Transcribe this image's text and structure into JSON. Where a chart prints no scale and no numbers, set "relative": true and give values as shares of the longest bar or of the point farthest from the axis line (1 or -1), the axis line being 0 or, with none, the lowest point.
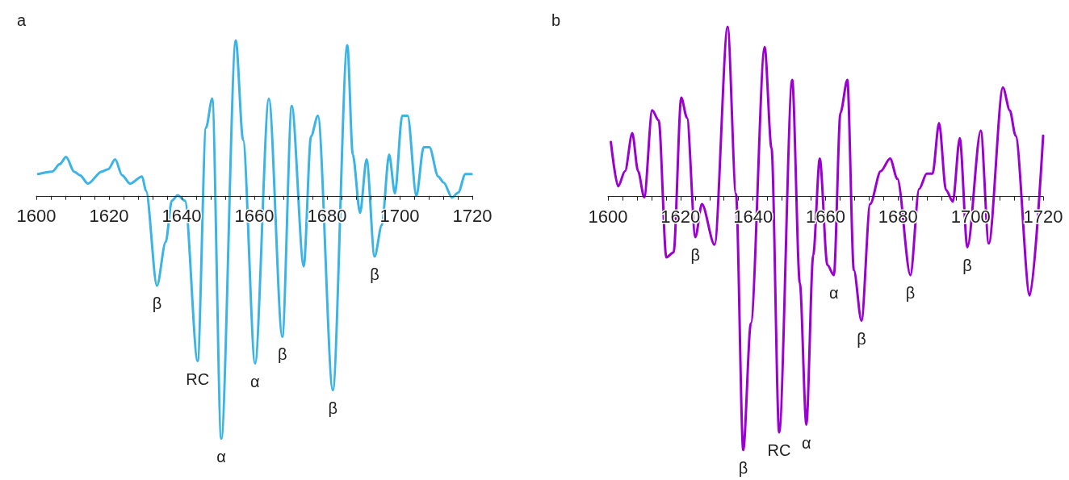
{
  "chart_data": [
    {
      "type": "line",
      "title": "a",
      "relative": true,
      "xlim": [
        1600,
        1720
      ],
      "xticks": [
        1600,
        {
          "value": 1604,
          "label": null
        },
        {
          "value": 1608,
          "label": null
        },
        {
          "value": 1612,
          "label": null
        },
        {
          "value": 1616,
          "label": null
        },
        1620,
        {
          "value": 1624,
          "label": null
        },
        {
          "value": 1628,
          "label": null
        },
        {
          "value": 1632,
          "label": null
        },
        {
          "value": 1636,
          "label": null
        },
        1640,
        {
          "value": 1644,
          "label": null
        },
        {
          "value": 1648,
          "label": null
        },
        {
          "value": 1652,
          "label": null
        },
        {
          "value": 1656,
          "label": null
        },
        1660,
        {
          "value": 1664,
          "label": null
        },
        {
          "value": 1668,
          "label": null
        },
        {
          "value": 1672,
          "label": null
        },
        {
          "value": 1676,
          "label": null
        },
        1680,
        {
          "value": 1684,
          "label": null
        },
        {
          "value": 1688,
          "label": null
        },
        {
          "value": 1692,
          "label": null
        },
        {
          "value": 1696,
          "label": null
        },
        1700,
        {
          "value": 1704,
          "label": null
        },
        {
          "value": 1708,
          "label": null
        },
        {
          "value": 1712,
          "label": null
        },
        {
          "value": 1716,
          "label": null
        },
        1720
      ],
      "x": [
        1600.5,
        1604.4,
        1606.4,
        1608.2,
        1610.4,
        1612,
        1614.2,
        1618,
        1619.8,
        1621.7,
        1623.6,
        1625.8,
        1629.1,
        1630.2,
        1633.2,
        1635.6,
        1637.3,
        1638.9,
        1640.9,
        1644.4,
        1646.7,
        1648.4,
        1650.9,
        1654.9,
        1656.9,
        1660.2,
        1664,
        1667.7,
        1670.3,
        1673.6,
        1675.6,
        1677.5,
        1681.6,
        1685.6,
        1687.1,
        1689.1,
        1690.9,
        1693.1,
        1695.1,
        1697.1,
        1698.7,
        1700.7,
        1702.2,
        1704.6,
        1706.6,
        1708.2,
        1710.6,
        1712.1,
        1714.4,
        1716.1,
        1718.1,
        1719.8
      ],
      "series": [
        {
          "color": "#3ab4e6",
          "values": [
            0.09,
            0.1,
            0.13,
            0.16,
            0.1,
            0.085,
            0.05,
            0.1,
            0.11,
            0.15,
            0.085,
            0.05,
            0.08,
            0.02,
            -0.37,
            -0.19,
            -0.02,
            0.003,
            -0.02,
            -0.68,
            0.28,
            0.4,
            -1,
            0.64,
            0.23,
            -0.69,
            0.4,
            -0.58,
            0.37,
            -0.29,
            0.245,
            0.33,
            -0.8,
            0.62,
            0.17,
            -0.07,
            0.15,
            -0.25,
            -0.12,
            0.17,
            0.01,
            0.33,
            0.33,
            0,
            0.2,
            0.2,
            0.08,
            0.055,
            -0.007,
            0.013,
            0.09,
            0.09
          ]
        }
      ],
      "annotations": [
        {
          "text": "β",
          "x": 1633.2,
          "y": -0.37
        },
        {
          "text": "RC",
          "x": 1644.4,
          "y": -0.68
        },
        {
          "text": "α",
          "x": 1650.9,
          "y": -1
        },
        {
          "text": "α",
          "x": 1660.2,
          "y": -0.69
        },
        {
          "text": "β",
          "x": 1667.7,
          "y": -0.58
        },
        {
          "text": "β",
          "x": 1681.6,
          "y": -0.8
        },
        {
          "text": "β",
          "x": 1693.1,
          "y": -0.25
        }
      ]
    },
    {
      "type": "line",
      "title": "b",
      "relative": true,
      "xlim": [
        1600,
        1720
      ],
      "xticks": [
        1600,
        {
          "value": 1604,
          "label": null
        },
        {
          "value": 1608,
          "label": null
        },
        {
          "value": 1612,
          "label": null
        },
        {
          "value": 1616,
          "label": null
        },
        1620,
        {
          "value": 1624,
          "label": null
        },
        {
          "value": 1628,
          "label": null
        },
        {
          "value": 1632,
          "label": null
        },
        {
          "value": 1636,
          "label": null
        },
        1640,
        {
          "value": 1644,
          "label": null
        },
        {
          "value": 1648,
          "label": null
        },
        {
          "value": 1652,
          "label": null
        },
        {
          "value": 1656,
          "label": null
        },
        1660,
        {
          "value": 1664,
          "label": null
        },
        {
          "value": 1668,
          "label": null
        },
        {
          "value": 1672,
          "label": null
        },
        {
          "value": 1676,
          "label": null
        },
        1680,
        {
          "value": 1684,
          "label": null
        },
        {
          "value": 1688,
          "label": null
        },
        {
          "value": 1692,
          "label": null
        },
        {
          "value": 1696,
          "label": null
        },
        1700,
        {
          "value": 1704,
          "label": null
        },
        {
          "value": 1708,
          "label": null
        },
        {
          "value": 1712,
          "label": null
        },
        {
          "value": 1716,
          "label": null
        },
        1720
      ],
      "x": [
        1600.8,
        1602.8,
        1604.7,
        1606.7,
        1608.3,
        1610,
        1612.2,
        1614,
        1616.1,
        1618.1,
        1620.2,
        1621.8,
        1624.1,
        1625.9,
        1629.4,
        1633,
        1635.3,
        1637.3,
        1639.4,
        1643.2,
        1645.1,
        1647.2,
        1650.8,
        1652.9,
        1654.7,
        1656.6,
        1658.4,
        1660.5,
        1662.3,
        1664.1,
        1666,
        1667.8,
        1669.9,
        1672.3,
        1675.2,
        1677.8,
        1679.8,
        1683.4,
        1685.8,
        1687.9,
        1689.5,
        1691.3,
        1693.2,
        1695.1,
        1697,
        1699.1,
        1702.8,
        1705,
        1708.9,
        1710.8,
        1712.4,
        1716.3,
        1720
      ],
      "series": [
        {
          "color": "#9b00d3",
          "values": [
            0.215,
            0.04,
            0.1,
            0.25,
            0.1,
            -0.003,
            0.34,
            0.3,
            -0.24,
            -0.22,
            0.39,
            0.31,
            -0.16,
            -0.03,
            -0.19,
            0.67,
            0.01,
            -1,
            -0.5,
            0.59,
            0.19,
            -0.93,
            0.46,
            -0.34,
            -0.9,
            -0.23,
            0.15,
            -0.27,
            -0.31,
            0.33,
            0.46,
            -0.29,
            -0.49,
            -0.03,
            0.1,
            0.15,
            0.07,
            -0.31,
            0.03,
            0.09,
            0.09,
            0.29,
            0.026,
            -0.02,
            0.23,
            -0.2,
            0.26,
            -0.185,
            0.43,
            0.34,
            0.24,
            -0.39,
            0.24
          ]
        }
      ],
      "annotations": [
        {
          "text": "β",
          "x": 1624.1,
          "y": -0.16
        },
        {
          "text": "β",
          "x": 1637.3,
          "y": -1
        },
        {
          "text": "RC",
          "x": 1647.2,
          "y": -0.93
        },
        {
          "text": "α",
          "x": 1654.7,
          "y": -0.9
        },
        {
          "text": "α",
          "x": 1662.3,
          "y": -0.31
        },
        {
          "text": "β",
          "x": 1669.9,
          "y": -0.49
        },
        {
          "text": "β",
          "x": 1683.4,
          "y": -0.31
        },
        {
          "text": "β",
          "x": 1699.1,
          "y": -0.2
        }
      ]
    }
  ]
}
